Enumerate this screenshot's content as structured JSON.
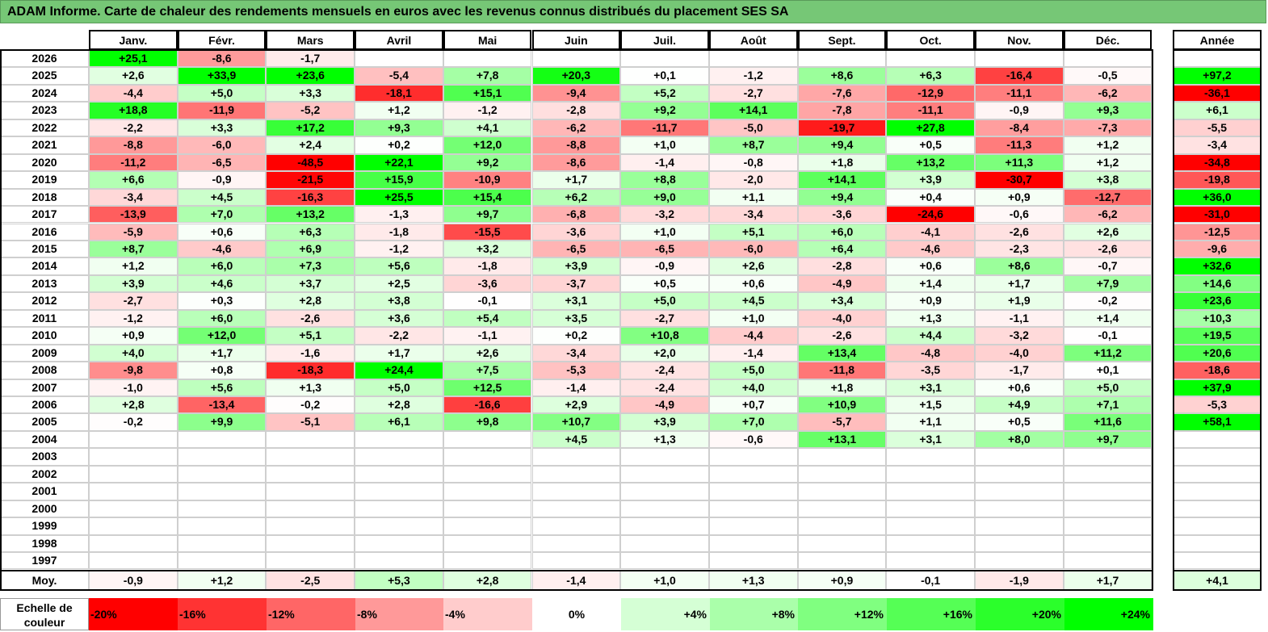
{
  "title": "ADAM Informe. Carte de chaleur des rendements mensuels en euros avec les revenus connus distribués du placement SES SA",
  "chart_data": {
    "type": "heatmap",
    "title": "ADAM Informe. Carte de chaleur des rendements mensuels en euros avec les revenus connus distribués du placement SES SA",
    "columns": [
      "Janv.",
      "Févr.",
      "Mars",
      "Avril",
      "Mai",
      "Juin",
      "Juil.",
      "Août",
      "Sept.",
      "Oct.",
      "Nov.",
      "Déc."
    ],
    "year_column_label": "Année",
    "rows": [
      {
        "year": "2026",
        "values": [
          "+25,1",
          "-8,6",
          "-1,7",
          "",
          "",
          "",
          "",
          "",
          "",
          "",
          "",
          ""
        ],
        "annual": ""
      },
      {
        "year": "2025",
        "values": [
          "+2,6",
          "+33,9",
          "+23,6",
          "-5,4",
          "+7,8",
          "+20,3",
          "+0,1",
          "-1,2",
          "+8,6",
          "+6,3",
          "-16,4",
          "-0,5"
        ],
        "annual": "+97,2"
      },
      {
        "year": "2024",
        "values": [
          "-4,4",
          "+5,0",
          "+3,3",
          "-18,1",
          "+15,1",
          "-9,4",
          "+5,2",
          "-2,7",
          "-7,6",
          "-12,9",
          "-11,1",
          "-6,2"
        ],
        "annual": "-36,1"
      },
      {
        "year": "2023",
        "values": [
          "+18,8",
          "-11,9",
          "-5,2",
          "+1,2",
          "-1,2",
          "-2,8",
          "+9,2",
          "+14,1",
          "-7,8",
          "-11,1",
          "-0,9",
          "+9,3"
        ],
        "annual": "+6,1"
      },
      {
        "year": "2022",
        "values": [
          "-2,2",
          "+3,3",
          "+17,2",
          "+9,3",
          "+4,1",
          "-6,2",
          "-11,7",
          "-5,0",
          "-19,7",
          "+27,8",
          "-8,4",
          "-7,3"
        ],
        "annual": "-5,5"
      },
      {
        "year": "2021",
        "values": [
          "-8,8",
          "-6,0",
          "+2,4",
          "+0,2",
          "+12,0",
          "-8,8",
          "+1,0",
          "+8,7",
          "+9,4",
          "+0,5",
          "-11,3",
          "+1,2"
        ],
        "annual": "-3,4"
      },
      {
        "year": "2020",
        "values": [
          "-11,2",
          "-6,5",
          "-48,5",
          "+22,1",
          "+9,2",
          "-8,6",
          "-1,4",
          "-0,8",
          "+1,8",
          "+13,2",
          "+11,3",
          "+1,2"
        ],
        "annual": "-34,8"
      },
      {
        "year": "2019",
        "values": [
          "+6,6",
          "-0,9",
          "-21,5",
          "+15,9",
          "-10,9",
          "+1,7",
          "+8,8",
          "-2,0",
          "+14,1",
          "+3,9",
          "-30,7",
          "+3,8"
        ],
        "annual": "-19,8"
      },
      {
        "year": "2018",
        "values": [
          "-3,4",
          "+4,5",
          "-16,3",
          "+25,5",
          "+15,4",
          "+6,2",
          "+9,0",
          "+1,1",
          "+9,4",
          "+0,4",
          "+0,9",
          "-12,7"
        ],
        "annual": "+36,0"
      },
      {
        "year": "2017",
        "values": [
          "-13,9",
          "+7,0",
          "+13,2",
          "-1,3",
          "+9,7",
          "-6,8",
          "-3,2",
          "-3,4",
          "-3,6",
          "-24,6",
          "-0,6",
          "-6,2"
        ],
        "annual": "-31,0"
      },
      {
        "year": "2016",
        "values": [
          "-5,9",
          "+0,6",
          "+6,3",
          "-1,8",
          "-15,5",
          "-3,6",
          "+1,0",
          "+5,1",
          "+6,0",
          "-4,1",
          "-2,6",
          "+2,6"
        ],
        "annual": "-12,5"
      },
      {
        "year": "2015",
        "values": [
          "+8,7",
          "-4,6",
          "+6,9",
          "-1,2",
          "+3,2",
          "-6,5",
          "-6,5",
          "-6,0",
          "+6,4",
          "-4,6",
          "-2,3",
          "-2,6"
        ],
        "annual": "-9,6"
      },
      {
        "year": "2014",
        "values": [
          "+1,2",
          "+6,0",
          "+7,3",
          "+5,6",
          "-1,8",
          "+3,9",
          "-0,9",
          "+2,6",
          "-2,8",
          "+0,6",
          "+8,6",
          "-0,7"
        ],
        "annual": "+32,6"
      },
      {
        "year": "2013",
        "values": [
          "+3,9",
          "+4,6",
          "+3,7",
          "+2,5",
          "-3,6",
          "-3,7",
          "+0,5",
          "+0,6",
          "-4,9",
          "+1,4",
          "+1,7",
          "+7,9"
        ],
        "annual": "+14,6"
      },
      {
        "year": "2012",
        "values": [
          "-2,7",
          "+0,3",
          "+2,8",
          "+3,8",
          "-0,1",
          "+3,1",
          "+5,0",
          "+4,5",
          "+3,4",
          "+0,9",
          "+1,9",
          "-0,2"
        ],
        "annual": "+23,6"
      },
      {
        "year": "2011",
        "values": [
          "-1,2",
          "+6,0",
          "-2,6",
          "+3,6",
          "+5,4",
          "+3,5",
          "-2,7",
          "+1,0",
          "-4,0",
          "+1,3",
          "-1,1",
          "+1,4"
        ],
        "annual": "+10,3"
      },
      {
        "year": "2010",
        "values": [
          "+0,9",
          "+12,0",
          "+5,1",
          "-2,2",
          "-1,1",
          "+0,2",
          "+10,8",
          "-4,4",
          "-2,6",
          "+4,4",
          "-3,2",
          "-0,1"
        ],
        "annual": "+19,5"
      },
      {
        "year": "2009",
        "values": [
          "+4,0",
          "+1,7",
          "-1,6",
          "+1,7",
          "+2,6",
          "-3,4",
          "+2,0",
          "-1,4",
          "+13,4",
          "-4,8",
          "-4,0",
          "+11,2"
        ],
        "annual": "+20,6"
      },
      {
        "year": "2008",
        "values": [
          "-9,8",
          "+0,8",
          "-18,3",
          "+24,4",
          "+7,5",
          "-5,3",
          "-2,4",
          "+5,0",
          "-11,8",
          "-3,5",
          "-1,7",
          "+0,1"
        ],
        "annual": "-18,6"
      },
      {
        "year": "2007",
        "values": [
          "-1,0",
          "+5,6",
          "+1,3",
          "+5,0",
          "+12,5",
          "-1,4",
          "-2,4",
          "+4,0",
          "+1,8",
          "+3,1",
          "+0,6",
          "+5,0"
        ],
        "annual": "+37,9"
      },
      {
        "year": "2006",
        "values": [
          "+2,8",
          "-13,4",
          "-0,2",
          "+2,8",
          "-16,6",
          "+2,9",
          "-4,9",
          "+0,7",
          "+10,9",
          "+1,5",
          "+4,9",
          "+7,1"
        ],
        "annual": "-5,3"
      },
      {
        "year": "2005",
        "values": [
          "-0,2",
          "+9,9",
          "-5,1",
          "+6,1",
          "+9,8",
          "+10,7",
          "+3,9",
          "+7,0",
          "-5,7",
          "+1,1",
          "+0,5",
          "+11,6"
        ],
        "annual": "+58,1"
      },
      {
        "year": "2004",
        "values": [
          "",
          "",
          "",
          "",
          "",
          "+4,5",
          "+1,3",
          "-0,6",
          "+13,1",
          "+3,1",
          "+8,0",
          "+9,7"
        ],
        "annual": ""
      },
      {
        "year": "2003",
        "values": [
          "",
          "",
          "",
          "",
          "",
          "",
          "",
          "",
          "",
          "",
          "",
          ""
        ],
        "annual": ""
      },
      {
        "year": "2002",
        "values": [
          "",
          "",
          "",
          "",
          "",
          "",
          "",
          "",
          "",
          "",
          "",
          ""
        ],
        "annual": ""
      },
      {
        "year": "2001",
        "values": [
          "",
          "",
          "",
          "",
          "",
          "",
          "",
          "",
          "",
          "",
          "",
          ""
        ],
        "annual": ""
      },
      {
        "year": "2000",
        "values": [
          "",
          "",
          "",
          "",
          "",
          "",
          "",
          "",
          "",
          "",
          "",
          ""
        ],
        "annual": ""
      },
      {
        "year": "1999",
        "values": [
          "",
          "",
          "",
          "",
          "",
          "",
          "",
          "",
          "",
          "",
          "",
          ""
        ],
        "annual": ""
      },
      {
        "year": "1998",
        "values": [
          "",
          "",
          "",
          "",
          "",
          "",
          "",
          "",
          "",
          "",
          "",
          ""
        ],
        "annual": ""
      },
      {
        "year": "1997",
        "values": [
          "",
          "",
          "",
          "",
          "",
          "",
          "",
          "",
          "",
          "",
          "",
          ""
        ],
        "annual": ""
      }
    ],
    "average": {
      "label": "Moy.",
      "values": [
        "-0,9",
        "+1,2",
        "-2,5",
        "+5,3",
        "+2,8",
        "-1,4",
        "+1,0",
        "+1,3",
        "+0,9",
        "-0,1",
        "-1,9",
        "+1,7"
      ],
      "annual": "+4,1"
    },
    "scale": {
      "label": "Echelle de couleur",
      "steps": [
        "-20%",
        "-16%",
        "-12%",
        "-8%",
        "-4%",
        "0%",
        "+4%",
        "+8%",
        "+12%",
        "+16%",
        "+20%",
        "+24%"
      ]
    },
    "colors": {
      "negative": "#ff0000",
      "positive": "#00ff00",
      "neutral": "#ffffff",
      "title_bar": "#76c776"
    }
  }
}
